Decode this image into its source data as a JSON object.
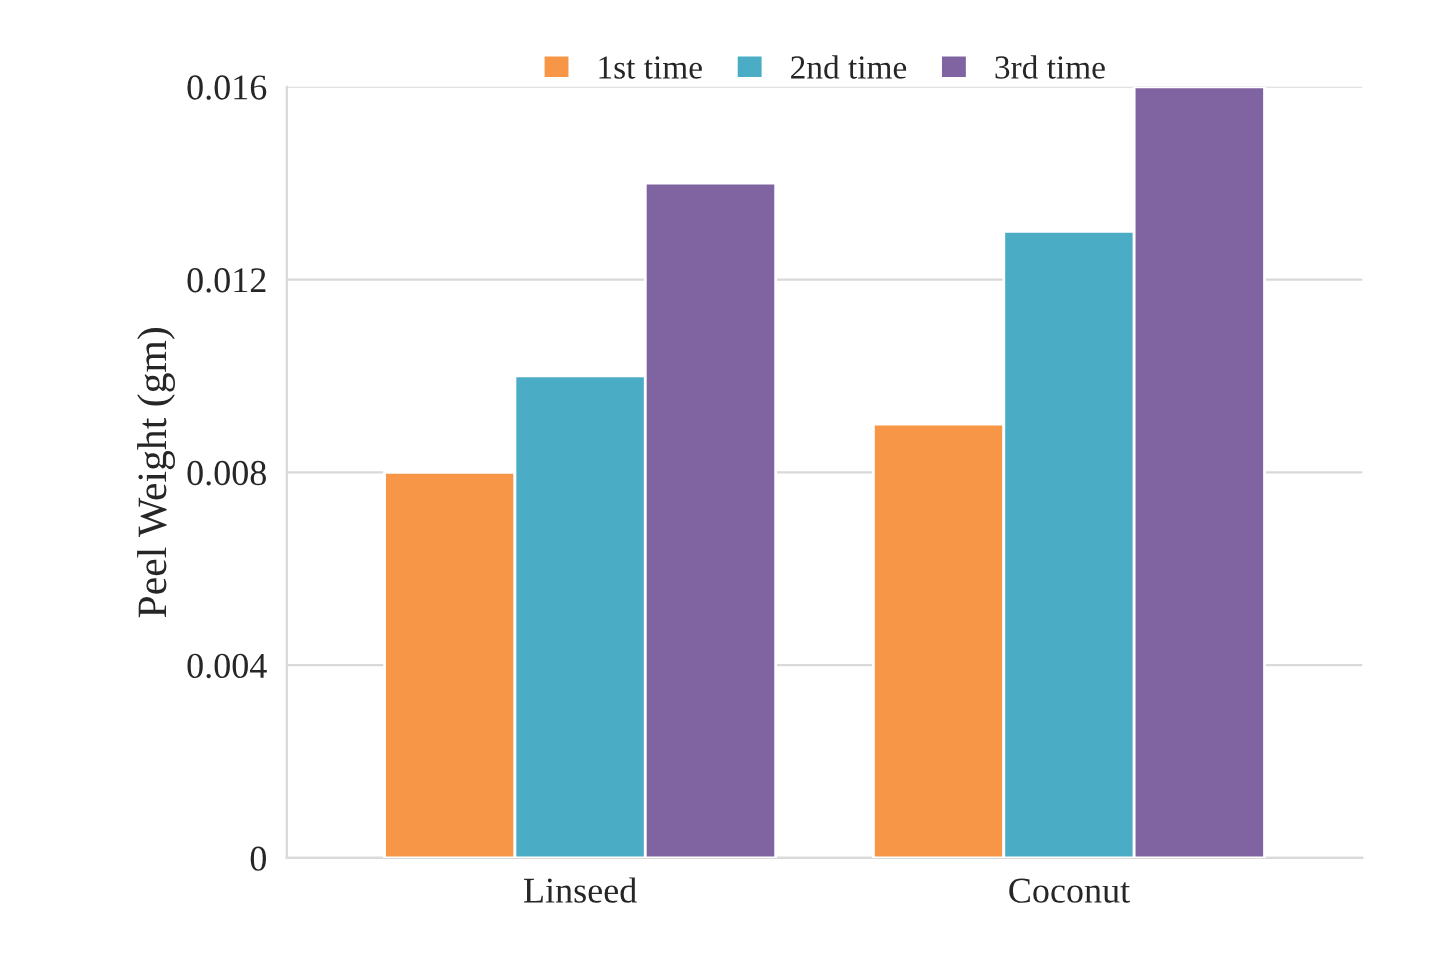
{
  "chart_data": {
    "type": "bar",
    "ylabel": "Peel Weight (gm)",
    "categories": [
      "Linseed",
      "Coconut"
    ],
    "series": [
      {
        "name": "1st time",
        "color": "#f79646",
        "values": [
          0.008,
          0.009
        ]
      },
      {
        "name": "2nd time",
        "color": "#4bacc6",
        "values": [
          0.01,
          0.013
        ]
      },
      {
        "name": "3rd time",
        "color": "#8064a2",
        "values": [
          0.014,
          0.016
        ]
      }
    ],
    "ylim": [
      0,
      0.016
    ],
    "yticks": [
      {
        "value": 0,
        "label": "0"
      },
      0.004,
      0.008,
      0.012,
      0.016
    ],
    "grid": "y",
    "legend": "top"
  }
}
